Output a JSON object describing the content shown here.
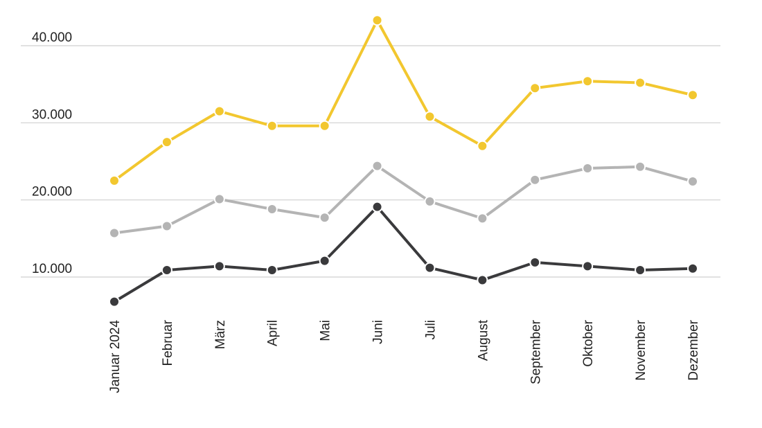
{
  "chart_data": {
    "type": "line",
    "title": "",
    "xlabel": "",
    "ylabel": "",
    "categories": [
      "Januar 2024",
      "Februar",
      "März",
      "April",
      "Mai",
      "Juni",
      "Juli",
      "August",
      "September",
      "Oktober",
      "November",
      "Dezember"
    ],
    "y_ticks": [
      {
        "value": 10000,
        "label": "10.000"
      },
      {
        "value": 20000,
        "label": "20.000"
      },
      {
        "value": 30000,
        "label": "30.000"
      },
      {
        "value": 40000,
        "label": "40.000"
      }
    ],
    "ylim": [
      4000,
      43500
    ],
    "grid": true,
    "legend": "none",
    "series": [
      {
        "color": "#f2c72f",
        "values": [
          22500,
          27500,
          31500,
          29600,
          29600,
          43300,
          30800,
          27000,
          34500,
          35400,
          35200,
          33600
        ]
      },
      {
        "color": "#b4b4b4",
        "values": [
          15700,
          16600,
          20100,
          18800,
          17700,
          24400,
          19800,
          17600,
          22600,
          24100,
          24300,
          22400
        ]
      },
      {
        "color": "#3a3a3c",
        "values": [
          6800,
          10900,
          11400,
          10900,
          12100,
          19100,
          11200,
          9600,
          11900,
          11400,
          10900,
          11100
        ]
      }
    ]
  }
}
